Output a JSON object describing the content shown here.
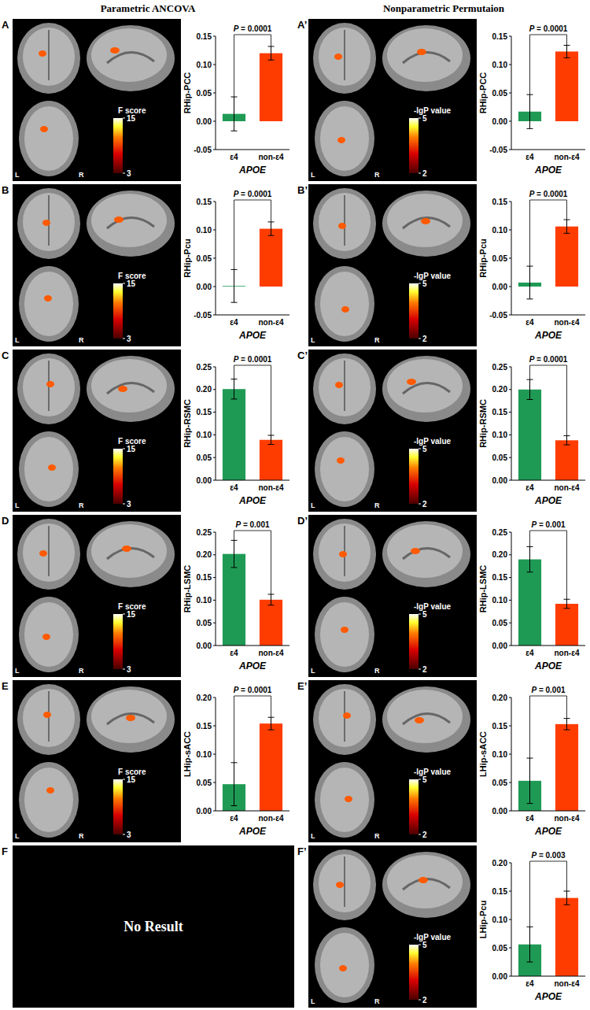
{
  "headers": [
    "Parametric ANCOVA",
    "Nonparametric Permutaion"
  ],
  "orientation_labels": [
    "L",
    "R"
  ],
  "chart_data": [
    {
      "type": "bar",
      "panel": "A",
      "colorbar": {
        "label": "F score",
        "range": [
          3,
          15
        ],
        "ticks": [
          3,
          15
        ]
      },
      "y_label": "RHip-PCC",
      "x_label": "APOE",
      "categories": [
        "ε4",
        "non-ε4"
      ],
      "values": [
        0.013,
        0.12
      ],
      "errors": [
        0.03,
        0.012
      ],
      "colors": [
        "#1f9a55",
        "#ff3c00"
      ],
      "ylim": [
        -0.05,
        0.15
      ],
      "yticks": [
        -0.05,
        {
          "value": 0,
          "label": "0.00"
        },
        0.05,
        {
          "value": 0.1,
          "label": "0.10"
        },
        0.15
      ],
      "annotation": "P = 0.0001"
    },
    {
      "type": "bar",
      "panel": "A’",
      "colorbar": {
        "label": "-lgP value",
        "range": [
          2,
          5
        ],
        "ticks": [
          2,
          5
        ]
      },
      "y_label": "RHip-PCC",
      "x_label": "APOE",
      "categories": [
        "ε4",
        "non-ε4"
      ],
      "values": [
        0.017,
        0.123
      ],
      "errors": [
        0.03,
        0.011
      ],
      "colors": [
        "#1f9a55",
        "#ff3c00"
      ],
      "ylim": [
        -0.05,
        0.15
      ],
      "yticks": [
        -0.05,
        {
          "value": 0,
          "label": "0.00"
        },
        0.05,
        {
          "value": 0.1,
          "label": "0.10"
        },
        0.15
      ],
      "annotation": "P = 0.0001"
    },
    {
      "type": "bar",
      "panel": "B",
      "colorbar": {
        "label": "F score",
        "range": [
          3,
          15
        ],
        "ticks": [
          3,
          15
        ]
      },
      "y_label": "RHip-Pcu",
      "x_label": "APOE",
      "categories": [
        "ε4",
        "non-ε4"
      ],
      "values": [
        0.001,
        0.102
      ],
      "errors": [
        0.029,
        0.012
      ],
      "colors": [
        "#1f9a55",
        "#ff3c00"
      ],
      "ylim": [
        -0.05,
        0.15
      ],
      "yticks": [
        -0.05,
        {
          "value": 0,
          "label": "0.00"
        },
        0.05,
        {
          "value": 0.1,
          "label": "0.10"
        },
        0.15
      ],
      "annotation": "P = 0.0001"
    },
    {
      "type": "bar",
      "panel": "B’",
      "colorbar": {
        "label": "-lgP value",
        "range": [
          2,
          5
        ],
        "ticks": [
          2,
          5
        ]
      },
      "y_label": "RHip-Pcu",
      "x_label": "APOE",
      "categories": [
        "ε4",
        "non-ε4"
      ],
      "values": [
        0.007,
        0.106
      ],
      "errors": [
        0.029,
        0.012
      ],
      "colors": [
        "#1f9a55",
        "#ff3c00"
      ],
      "ylim": [
        -0.05,
        0.15
      ],
      "yticks": [
        -0.05,
        {
          "value": 0,
          "label": "0.00"
        },
        0.05,
        {
          "value": 0.1,
          "label": "0.10"
        },
        0.15
      ],
      "annotation": "P = 0.0001"
    },
    {
      "type": "bar",
      "panel": "C",
      "colorbar": {
        "label": "F score",
        "range": [
          3,
          15
        ],
        "ticks": [
          3,
          15
        ]
      },
      "y_label": "RHip-RSMC",
      "x_label": "APOE",
      "categories": [
        "ε4",
        "non-ε4"
      ],
      "values": [
        0.201,
        0.089
      ],
      "errors": [
        0.022,
        0.01
      ],
      "colors": [
        "#1f9a55",
        "#ff3c00"
      ],
      "ylim": [
        0,
        0.25
      ],
      "yticks": [
        {
          "value": 0,
          "label": "0.00"
        },
        0.05,
        {
          "value": 0.1,
          "label": "0.10"
        },
        0.15,
        {
          "value": 0.2,
          "label": "0.20"
        },
        0.25
      ],
      "annotation": "P = 0.0001"
    },
    {
      "type": "bar",
      "panel": "C’",
      "colorbar": {
        "label": "-lgP value",
        "range": [
          2,
          5
        ],
        "ticks": [
          2,
          5
        ]
      },
      "y_label": "RHip-RSMC",
      "x_label": "APOE",
      "categories": [
        "ε4",
        "non-ε4"
      ],
      "values": [
        0.2,
        0.088
      ],
      "errors": [
        0.022,
        0.01
      ],
      "colors": [
        "#1f9a55",
        "#ff3c00"
      ],
      "ylim": [
        0,
        0.25
      ],
      "yticks": [
        {
          "value": 0,
          "label": "0.00"
        },
        0.05,
        {
          "value": 0.1,
          "label": "0.10"
        },
        0.15,
        {
          "value": 0.2,
          "label": "0.20"
        },
        0.25
      ],
      "annotation": "P = 0.0001"
    },
    {
      "type": "bar",
      "panel": "D",
      "colorbar": {
        "label": "F score",
        "range": [
          3,
          15
        ],
        "ticks": [
          3,
          15
        ]
      },
      "y_label": "RHip-LSMC",
      "x_label": "APOE",
      "categories": [
        "ε4",
        "non-ε4"
      ],
      "values": [
        0.202,
        0.101
      ],
      "errors": [
        0.03,
        0.012
      ],
      "colors": [
        "#1f9a55",
        "#ff3c00"
      ],
      "ylim": [
        0,
        0.25
      ],
      "yticks": [
        {
          "value": 0,
          "label": "0.00"
        },
        0.05,
        {
          "value": 0.1,
          "label": "0.10"
        },
        0.15,
        {
          "value": 0.2,
          "label": "0.20"
        },
        0.25
      ],
      "annotation": "P = 0.001"
    },
    {
      "type": "bar",
      "panel": "D’",
      "colorbar": {
        "label": "-lgP value",
        "range": [
          2,
          5
        ],
        "ticks": [
          2,
          5
        ]
      },
      "y_label": "RHip-LSMC",
      "x_label": "APOE",
      "categories": [
        "ε4",
        "non-ε4"
      ],
      "values": [
        0.19,
        0.092
      ],
      "errors": [
        0.028,
        0.01
      ],
      "colors": [
        "#1f9a55",
        "#ff3c00"
      ],
      "ylim": [
        0,
        0.25
      ],
      "yticks": [
        {
          "value": 0,
          "label": "0.00"
        },
        0.05,
        {
          "value": 0.1,
          "label": "0.10"
        },
        0.15,
        {
          "value": 0.2,
          "label": "0.20"
        },
        0.25
      ],
      "annotation": "P = 0.001"
    },
    {
      "type": "bar",
      "panel": "E",
      "colorbar": {
        "label": "F score",
        "range": [
          3,
          15
        ],
        "ticks": [
          3,
          15
        ]
      },
      "y_label": "LHip-sACC",
      "x_label": "APOE",
      "categories": [
        "ε4",
        "non-ε4"
      ],
      "values": [
        0.047,
        0.154
      ],
      "errors": [
        0.038,
        0.011
      ],
      "colors": [
        "#1f9a55",
        "#ff3c00"
      ],
      "ylim": [
        0,
        0.2
      ],
      "yticks": [
        {
          "value": 0,
          "label": "0.00"
        },
        0.05,
        {
          "value": 0.1,
          "label": "0.10"
        },
        0.15,
        {
          "value": 0.2,
          "label": "0.20"
        }
      ],
      "annotation": "P = 0.0001"
    },
    {
      "type": "bar",
      "panel": "E’",
      "colorbar": {
        "label": "-lgP value",
        "range": [
          2,
          5
        ],
        "ticks": [
          2,
          5
        ]
      },
      "y_label": "LHip-sACC",
      "x_label": "APOE",
      "categories": [
        "ε4",
        "non-ε4"
      ],
      "values": [
        0.053,
        0.153
      ],
      "errors": [
        0.04,
        0.01
      ],
      "colors": [
        "#1f9a55",
        "#ff3c00"
      ],
      "ylim": [
        0,
        0.2
      ],
      "yticks": [
        {
          "value": 0,
          "label": "0.00"
        },
        0.05,
        {
          "value": 0.1,
          "label": "0.10"
        },
        0.15,
        {
          "value": 0.2,
          "label": "0.20"
        }
      ],
      "annotation": "P = 0.001"
    },
    {
      "type": "empty",
      "panel": "F",
      "text": "No Result"
    },
    {
      "type": "bar",
      "panel": "F’",
      "colorbar": {
        "label": "-lgP value",
        "range": [
          2,
          5
        ],
        "ticks": [
          2,
          5
        ]
      },
      "y_label": "LHip-Pcu",
      "x_label": "APOE",
      "categories": [
        "ε4",
        "non-ε4"
      ],
      "values": [
        0.056,
        0.138
      ],
      "errors": [
        0.031,
        0.012
      ],
      "colors": [
        "#1f9a55",
        "#ff3c00"
      ],
      "ylim": [
        0,
        0.2
      ],
      "yticks": [
        {
          "value": 0,
          "label": "0.00"
        },
        0.05,
        {
          "value": 0.1,
          "label": "0.10"
        },
        0.15,
        {
          "value": 0.2,
          "label": "0.20"
        }
      ],
      "annotation": "P = 0.003"
    }
  ]
}
